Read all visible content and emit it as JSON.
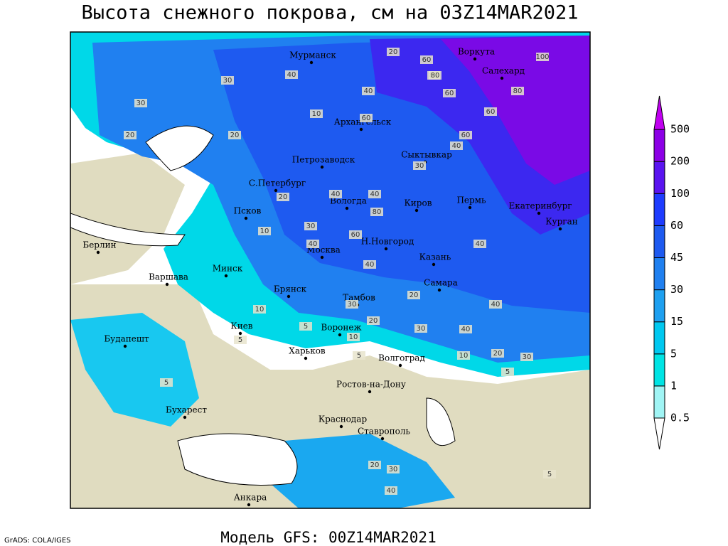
{
  "header": {
    "title": "Высота снежного покрова, см на 03Z14MAR2021"
  },
  "map": {
    "cities": [
      "Мурманск",
      "Воркута",
      "Салехард",
      "Архангельск",
      "Сыктывкар",
      "Петрозаводск",
      "С.Петербург",
      "Вологда",
      "Киров",
      "Пермь",
      "Екатеринбург",
      "Курган",
      "Псков",
      "Москва",
      "Н.Новгород",
      "Казань",
      "Берлин",
      "Варшава",
      "Минск",
      "Брянск",
      "Тамбов",
      "Самара",
      "Киев",
      "Воронеж",
      "Будапешт",
      "Харьков",
      "Волгоград",
      "Ростов-на-Дону",
      "Бухарест",
      "Краснодар",
      "Ставрополь",
      "Анкара"
    ],
    "contour_labels": [
      "20",
      "60",
      "100",
      "80",
      "30",
      "40",
      "30",
      "10",
      "20",
      "20",
      "60",
      "80",
      "60",
      "40",
      "60",
      "40",
      "80",
      "60",
      "30",
      "20",
      "40",
      "40",
      "80",
      "60",
      "30",
      "10",
      "40",
      "40",
      "40",
      "30",
      "20",
      "40",
      "30",
      "5",
      "10",
      "20",
      "40",
      "10",
      "20",
      "30",
      "5",
      "5",
      "5",
      "5",
      "10",
      "20",
      "30",
      "40",
      "5"
    ]
  },
  "legend": {
    "levels": [
      0.5,
      1,
      5,
      15,
      30,
      45,
      60,
      100,
      200,
      500
    ]
  },
  "footer": {
    "credit": "GrADS: COLA/IGES",
    "model": "Модель GFS: 00Z14MAR2021"
  }
}
